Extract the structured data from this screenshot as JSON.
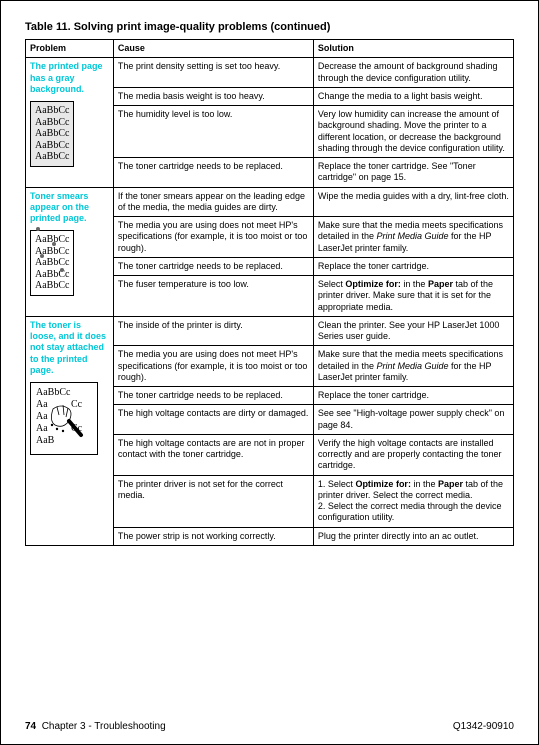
{
  "title": "Table 11.  Solving print image-quality problems (continued)",
  "headers": {
    "problem": "Problem",
    "cause": "Cause",
    "solution": "Solution"
  },
  "sample_text": "AaBbCc",
  "group1": {
    "label": "The printed page has a gray background.",
    "rows": [
      {
        "cause": "The print density setting is set too heavy.",
        "solution": "Decrease the amount of background shading through the device configuration utility."
      },
      {
        "cause": "The media basis weight is too heavy.",
        "solution": "Change the media to a light basis weight."
      },
      {
        "cause": "The humidity level is too low.",
        "solution": "Very low humidity can increase the amount of background shading. Move the printer to a different location, or decrease the background shading through the device configuration utility."
      },
      {
        "cause": "The toner cartridge needs to be replaced.",
        "solution": "Replace the toner cartridge. See \"Toner cartridge\" on page 15."
      }
    ]
  },
  "group2": {
    "label": "Toner smears appear on the printed page.",
    "rows": [
      {
        "cause": "If the toner smears appear on the leading edge of the media, the media guides are dirty.",
        "solution": "Wipe the media guides with a dry, lint-free cloth."
      },
      {
        "cause": "The media you are using does not meet HP's specifications (for example, it is too moist or too rough).",
        "solution_html": "Make sure that the media meets specifications detailed in the <i>Print Media Guide</i> for the HP LaserJet printer family."
      },
      {
        "cause": "The toner cartridge needs to be replaced.",
        "solution": "Replace the toner cartridge."
      },
      {
        "cause": "The fuser temperature is too low.",
        "solution_html": "Select <b>Optimize for:</b> in the <b>Paper</b> tab of the printer driver. Make sure that it is set for the appropriate media."
      }
    ]
  },
  "group3": {
    "label": "The toner is loose, and it does not stay attached to the printed page.",
    "rows": [
      {
        "cause": "The inside of the printer is dirty.",
        "solution": "Clean the printer. See your HP LaserJet 1000 Series user guide."
      },
      {
        "cause": "The media you are using does not meet HP's specifications (for example, it is too moist or too rough).",
        "solution_html": "Make sure that the media meets specifications detailed in the <i>Print Media Guide</i> for the HP LaserJet printer family."
      },
      {
        "cause": "The toner cartridge needs to be replaced.",
        "solution": "Replace the toner cartridge."
      },
      {
        "cause": "The high voltage contacts are dirty or damaged.",
        "solution": "See see \"High-voltage power supply check\" on page 84."
      },
      {
        "cause": "The high voltage contacts are are not in proper contact with the toner cartridge.",
        "solution": "Verify the high voltage contacts are installed correctly and are properly contacting the toner cartridge."
      },
      {
        "cause": "The printer driver is not set for the correct media.",
        "solution_html": "1. Select <b>Optimize for:</b> in the <b>Paper</b> tab of the printer driver. Select the correct media.<br>2. Select the correct media through the device configuration utility."
      },
      {
        "cause": "The power strip is not working correctly.",
        "solution": "Plug the printer directly into an ac outlet."
      }
    ]
  },
  "footer": {
    "page": "74",
    "chapter": "Chapter 3 - Troubleshooting",
    "doc": "Q1342-90910"
  }
}
